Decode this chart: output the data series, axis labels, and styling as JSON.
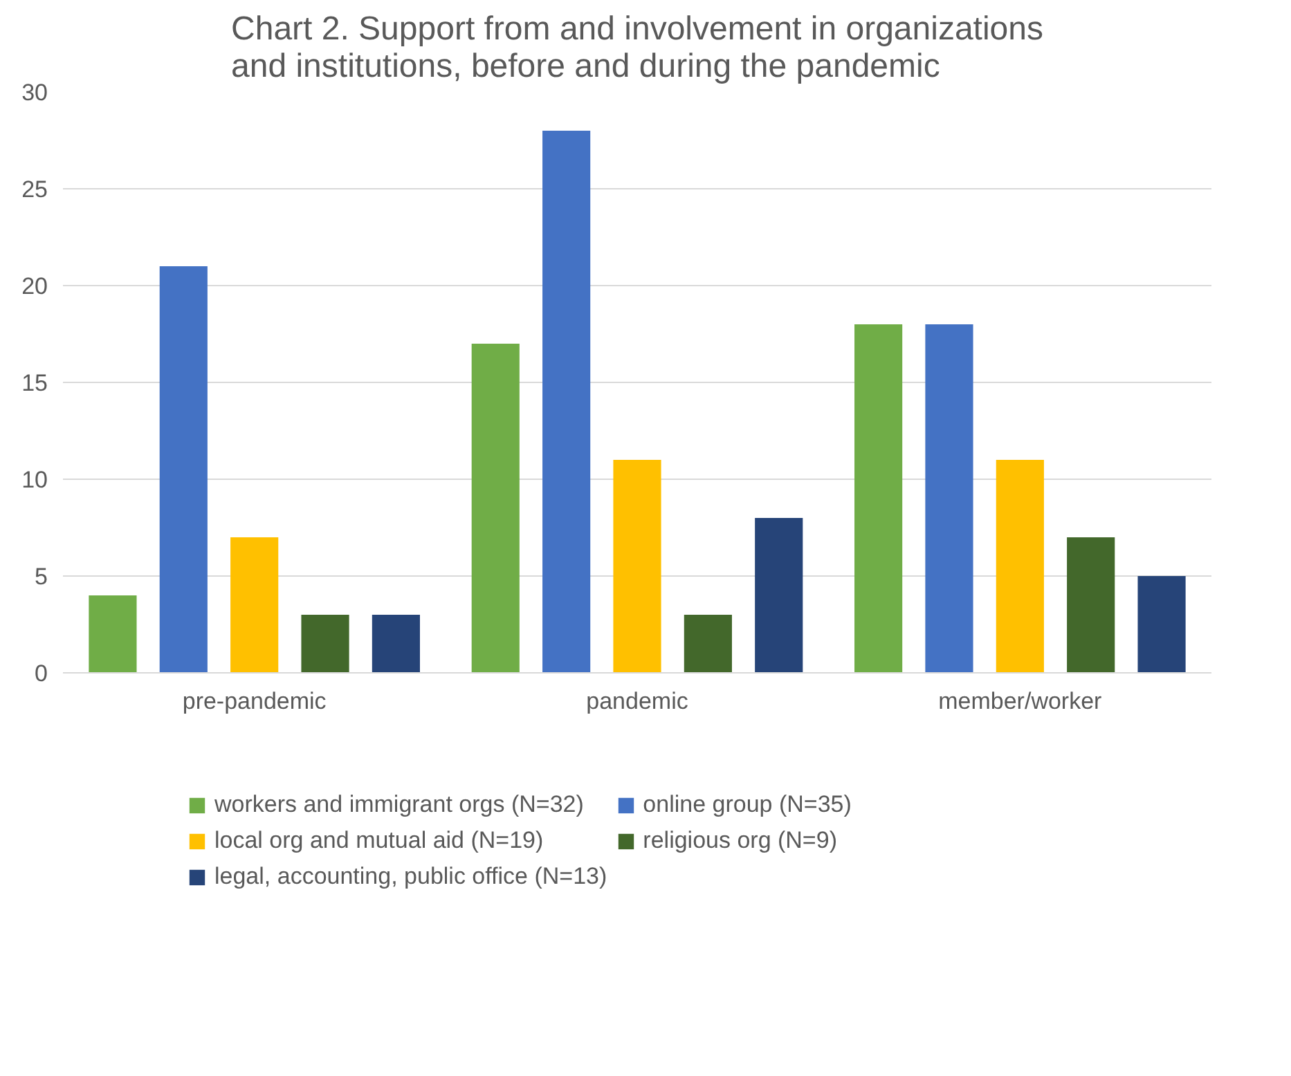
{
  "chart_data": {
    "type": "bar",
    "title": "Chart 2. Support from and involvement in organizations\nand institutions, before and during the pandemic",
    "categories": [
      "pre-pandemic",
      "pandemic",
      "member/worker"
    ],
    "series": [
      {
        "name": "workers and immigrant orgs (N=32)",
        "color": "#70ad47",
        "values": [
          4,
          17,
          18
        ]
      },
      {
        "name": "online group (N=35)",
        "color": "#4472c4",
        "values": [
          21,
          28,
          18
        ]
      },
      {
        "name": "local org and mutual aid (N=19)",
        "color": "#ffc000",
        "values": [
          7,
          11,
          11
        ]
      },
      {
        "name": "religious org (N=9)",
        "color": "#43682b",
        "values": [
          3,
          3,
          7
        ]
      },
      {
        "name": "legal, accounting, public office (N=13)",
        "color": "#264478",
        "values": [
          3,
          8,
          5
        ]
      }
    ],
    "ylim": [
      0,
      30
    ],
    "yticks": [
      0,
      5,
      10,
      15,
      20,
      25,
      30
    ],
    "grid": "y",
    "legend": "bottom"
  }
}
